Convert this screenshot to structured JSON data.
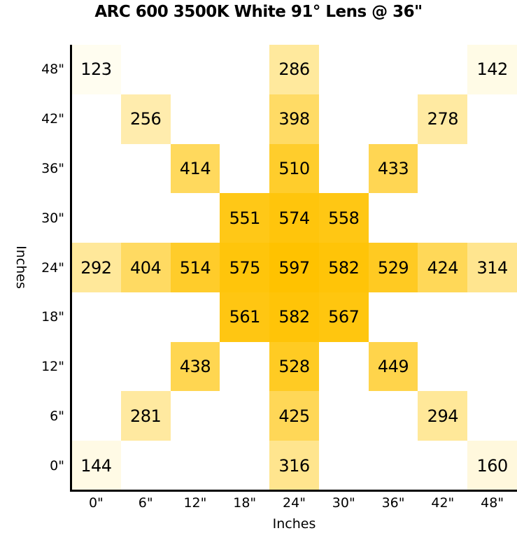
{
  "chart_data": {
    "type": "heatmap",
    "title": "ARC 600 3500K White 91° Lens @ 36\"",
    "xlabel": "Inches",
    "ylabel": "Inches",
    "x_ticks": [
      "0\"",
      "6\"",
      "12\"",
      "18\"",
      "24\"",
      "30\"",
      "36\"",
      "42\"",
      "48\""
    ],
    "y_ticks": [
      "48\"",
      "42\"",
      "36\"",
      "30\"",
      "24\"",
      "18\"",
      "12\"",
      "6\"",
      "0\""
    ],
    "grid": false,
    "color_scale": {
      "low": "#FFFDF0",
      "high": "#FFC200"
    },
    "value_range": [
      123,
      597
    ],
    "cells": [
      {
        "row": 0,
        "col": 0,
        "x": "0\"",
        "y": "48\"",
        "value": 123
      },
      {
        "row": 0,
        "col": 4,
        "x": "24\"",
        "y": "48\"",
        "value": 286
      },
      {
        "row": 0,
        "col": 8,
        "x": "48\"",
        "y": "48\"",
        "value": 142
      },
      {
        "row": 1,
        "col": 1,
        "x": "6\"",
        "y": "42\"",
        "value": 256
      },
      {
        "row": 1,
        "col": 4,
        "x": "24\"",
        "y": "42\"",
        "value": 398
      },
      {
        "row": 1,
        "col": 7,
        "x": "42\"",
        "y": "42\"",
        "value": 278
      },
      {
        "row": 2,
        "col": 2,
        "x": "12\"",
        "y": "36\"",
        "value": 414
      },
      {
        "row": 2,
        "col": 4,
        "x": "24\"",
        "y": "36\"",
        "value": 510
      },
      {
        "row": 2,
        "col": 6,
        "x": "36\"",
        "y": "36\"",
        "value": 433
      },
      {
        "row": 3,
        "col": 3,
        "x": "18\"",
        "y": "30\"",
        "value": 551
      },
      {
        "row": 3,
        "col": 4,
        "x": "24\"",
        "y": "30\"",
        "value": 574
      },
      {
        "row": 3,
        "col": 5,
        "x": "30\"",
        "y": "30\"",
        "value": 558
      },
      {
        "row": 4,
        "col": 0,
        "x": "0\"",
        "y": "24\"",
        "value": 292
      },
      {
        "row": 4,
        "col": 1,
        "x": "6\"",
        "y": "24\"",
        "value": 404
      },
      {
        "row": 4,
        "col": 2,
        "x": "12\"",
        "y": "24\"",
        "value": 514
      },
      {
        "row": 4,
        "col": 3,
        "x": "18\"",
        "y": "24\"",
        "value": 575
      },
      {
        "row": 4,
        "col": 4,
        "x": "24\"",
        "y": "24\"",
        "value": 597
      },
      {
        "row": 4,
        "col": 5,
        "x": "30\"",
        "y": "24\"",
        "value": 582
      },
      {
        "row": 4,
        "col": 6,
        "x": "36\"",
        "y": "24\"",
        "value": 529
      },
      {
        "row": 4,
        "col": 7,
        "x": "42\"",
        "y": "24\"",
        "value": 424
      },
      {
        "row": 4,
        "col": 8,
        "x": "48\"",
        "y": "24\"",
        "value": 314
      },
      {
        "row": 5,
        "col": 3,
        "x": "18\"",
        "y": "18\"",
        "value": 561
      },
      {
        "row": 5,
        "col": 4,
        "x": "24\"",
        "y": "18\"",
        "value": 582
      },
      {
        "row": 5,
        "col": 5,
        "x": "30\"",
        "y": "18\"",
        "value": 567
      },
      {
        "row": 6,
        "col": 2,
        "x": "12\"",
        "y": "12\"",
        "value": 438
      },
      {
        "row": 6,
        "col": 4,
        "x": "24\"",
        "y": "12\"",
        "value": 528
      },
      {
        "row": 6,
        "col": 6,
        "x": "36\"",
        "y": "12\"",
        "value": 449
      },
      {
        "row": 7,
        "col": 1,
        "x": "6\"",
        "y": "6\"",
        "value": 281
      },
      {
        "row": 7,
        "col": 4,
        "x": "24\"",
        "y": "6\"",
        "value": 425
      },
      {
        "row": 7,
        "col": 7,
        "x": "42\"",
        "y": "6\"",
        "value": 294
      },
      {
        "row": 8,
        "col": 0,
        "x": "0\"",
        "y": "0\"",
        "value": 144
      },
      {
        "row": 8,
        "col": 4,
        "x": "24\"",
        "y": "0\"",
        "value": 316
      },
      {
        "row": 8,
        "col": 8,
        "x": "48\"",
        "y": "0\"",
        "value": 160
      }
    ]
  }
}
